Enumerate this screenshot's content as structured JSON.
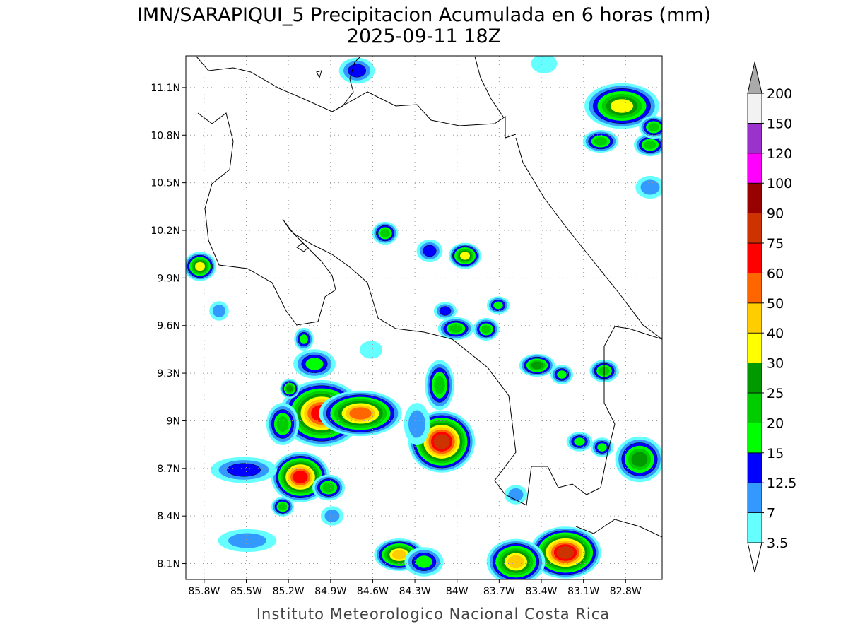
{
  "header": {
    "title": "IMN/SARAPIQUI_5 Precipitacion Acumulada en 6 horas (mm)",
    "subtitle": "2025-09-11 18Z"
  },
  "map": {
    "xlim": [
      -85.93,
      -82.54
    ],
    "ylim": [
      8.0,
      11.3
    ],
    "grid": true,
    "xticks": [
      {
        "value": -85.8,
        "label": "85.8W"
      },
      {
        "value": -85.5,
        "label": "85.5W"
      },
      {
        "value": -85.2,
        "label": "85.2W"
      },
      {
        "value": -84.9,
        "label": "84.9W"
      },
      {
        "value": -84.6,
        "label": "84.6W"
      },
      {
        "value": -84.3,
        "label": "84.3W"
      },
      {
        "value": -84.0,
        "label": "84W"
      },
      {
        "value": -83.7,
        "label": "83.7W"
      },
      {
        "value": -83.4,
        "label": "83.4W"
      },
      {
        "value": -83.1,
        "label": "83.1W"
      },
      {
        "value": -82.8,
        "label": "82.8W"
      }
    ],
    "yticks": [
      {
        "value": 8.1,
        "label": "8.1N"
      },
      {
        "value": 8.4,
        "label": "8.4N"
      },
      {
        "value": 8.7,
        "label": "8.7N"
      },
      {
        "value": 9.0,
        "label": "9N"
      },
      {
        "value": 9.3,
        "label": "9.3N"
      },
      {
        "value": 9.6,
        "label": "9.6N"
      },
      {
        "value": 9.9,
        "label": "9.9N"
      },
      {
        "value": 10.2,
        "label": "10.2N"
      },
      {
        "value": 10.5,
        "label": "10.5N"
      },
      {
        "value": 10.8,
        "label": "10.8N"
      },
      {
        "value": 11.1,
        "label": "11.1N"
      }
    ]
  },
  "colorbar": {
    "levels": [
      3.5,
      7,
      12.5,
      15,
      20,
      25,
      30,
      40,
      50,
      60,
      75,
      90,
      100,
      120,
      150,
      200
    ],
    "colors": [
      "#66ffff",
      "#3399ff",
      "#0000ff",
      "#00ff00",
      "#00cc00",
      "#009900",
      "#ffff00",
      "#ffcc00",
      "#ff6600",
      "#ff0000",
      "#cc3300",
      "#990000",
      "#ff00ff",
      "#9933cc",
      "#f2f2f2"
    ],
    "under_color": "#ffffff",
    "over_color": "#aaaaaa"
  },
  "footer": "Instituto Meteorologico Nacional Costa Rica"
}
